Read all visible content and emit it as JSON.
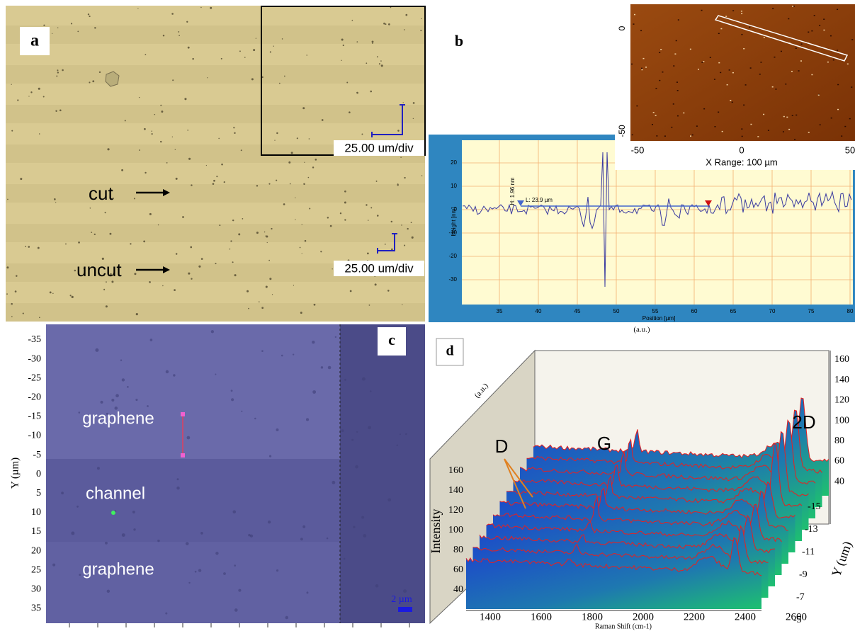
{
  "panel_a": {
    "label": "a",
    "inset_scale": "25.00 um/div",
    "cut": "cut",
    "uncut": "uncut",
    "scale": "25.00 um/div"
  },
  "panel_b": {
    "label": "b",
    "afm_yticks": [
      "0",
      "-50"
    ],
    "afm_xticks": [
      "-50",
      "0",
      "50"
    ],
    "afm_range": "X Range: 100 µm",
    "profile_yticks": [
      "20",
      "10",
      "0",
      "-10",
      "-20",
      "-30"
    ],
    "profile_xticks": [
      "35",
      "40",
      "45",
      "50",
      "55",
      "60",
      "65",
      "70",
      "75",
      "80"
    ],
    "y_label": "Height [nm]",
    "x_label": "Position [µm]",
    "height_marker": "H: 1.96 nm",
    "length_marker": "L: 23.9 µm"
  },
  "panel_c": {
    "label": "c",
    "yticks": [
      "-35",
      "-30",
      "-25",
      "-20",
      "-15",
      "-10",
      "-5",
      "0",
      "5",
      "10",
      "15",
      "20",
      "25",
      "30",
      "35"
    ],
    "y_label": "Y (µm)",
    "top_region": "graphene",
    "middle_region": "channel",
    "bottom_region": "graphene",
    "scale": "2 µm"
  },
  "panel_d": {
    "label": "d",
    "top_unit": "(a.u.)",
    "depth_unit": "(a.u.)",
    "right_yticks": [
      "160",
      "140",
      "120",
      "100",
      "80",
      "60",
      "40"
    ],
    "y_ticks": [
      "-15",
      "-13",
      "-11",
      "-9",
      "-7",
      "-5"
    ],
    "y_label": "Y (um)",
    "intensity_ticks": [
      "160",
      "140",
      "120",
      "100",
      "80",
      "60",
      "40"
    ],
    "intensity_label": "Intensity",
    "xticks": [
      "1400",
      "1600",
      "1800",
      "2000",
      "2200",
      "2400",
      "2600"
    ],
    "x_label": "Raman Shift (cm-1)",
    "peak_d": "D",
    "peak_g": "G",
    "peak_2d": "2D"
  }
}
